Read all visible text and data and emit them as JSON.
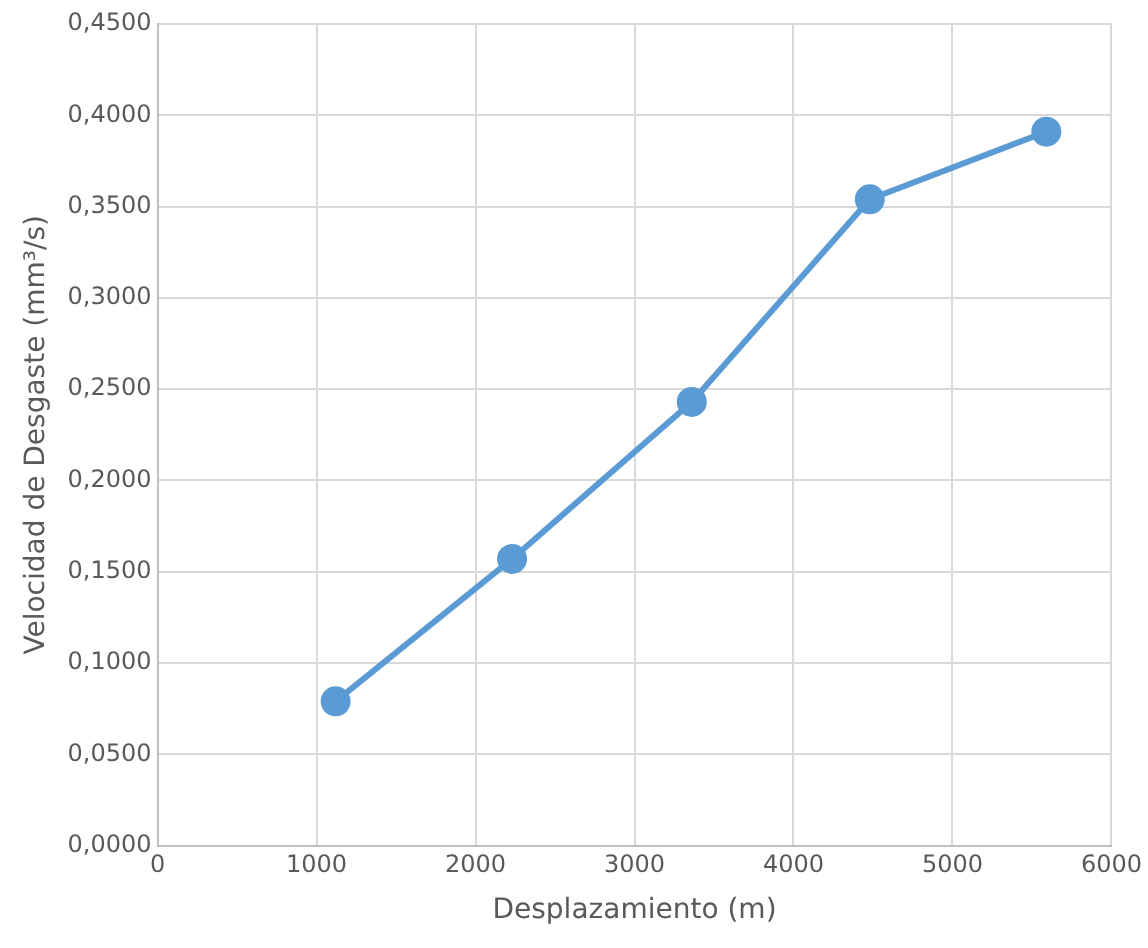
{
  "chart_data": {
    "type": "line",
    "xlabel": "Desplazamiento (m)",
    "ylabel": "Velocidad de Desgaste (mm³/s)",
    "x": [
      1120,
      2230,
      3360,
      4480,
      5590
    ],
    "series": [
      {
        "color": "#5b9bd5",
        "values": [
          0.079,
          0.157,
          0.243,
          0.354,
          0.391
        ]
      }
    ],
    "xlim": [
      0,
      6000
    ],
    "xticks": [
      0,
      1000,
      2000,
      3000,
      4000,
      5000,
      6000
    ],
    "ylim": [
      0,
      0.45
    ],
    "yticks": [
      {
        "value": 0,
        "label": "0,0000"
      },
      {
        "value": 0.05,
        "label": "0,0500"
      },
      {
        "value": 0.1,
        "label": "0,1000"
      },
      {
        "value": 0.15,
        "label": "0,1500"
      },
      {
        "value": 0.2,
        "label": "0,2000"
      },
      {
        "value": 0.25,
        "label": "0,2500"
      },
      {
        "value": 0.3,
        "label": "0,3000"
      },
      {
        "value": 0.35,
        "label": "0,3500"
      },
      {
        "value": 0.4,
        "label": "0,4000"
      },
      {
        "value": 0.45,
        "label": "0,4500"
      }
    ],
    "grid": true,
    "legend": false,
    "marker": "circle",
    "line_style": "solid"
  }
}
